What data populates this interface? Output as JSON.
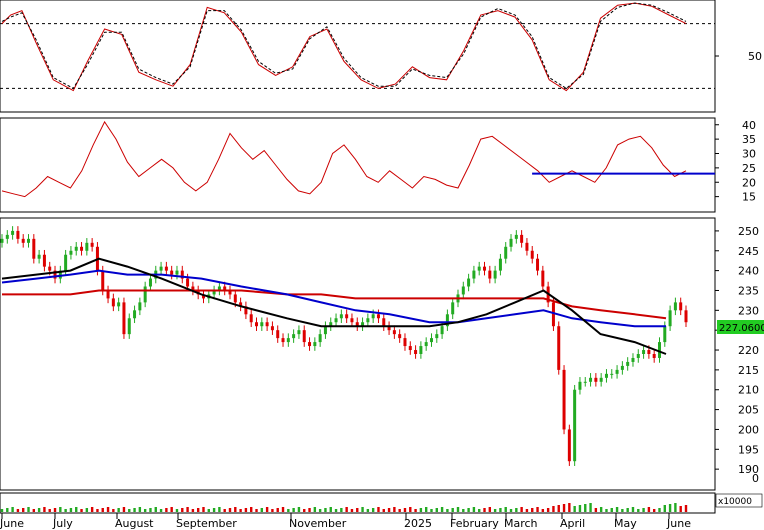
{
  "chart_data": [
    {
      "type": "line",
      "panel": "stochastic",
      "ylim": [
        0,
        100
      ],
      "yticks": [
        50
      ],
      "reference_levels": [
        80,
        20
      ],
      "series": [
        {
          "color": "#cc0000",
          "style": "solid",
          "x": [
            0,
            3,
            7,
            12,
            18,
            25,
            30,
            36,
            42,
            48,
            54,
            60,
            66,
            72,
            78,
            84,
            90,
            96,
            102,
            108,
            114,
            120,
            126,
            132,
            138,
            144,
            150,
            156,
            162,
            168,
            174,
            180,
            186,
            192,
            198,
            204,
            210,
            216,
            222,
            228,
            234,
            240
          ],
          "y": [
            80,
            88,
            92,
            62,
            28,
            18,
            45,
            75,
            70,
            35,
            28,
            22,
            42,
            95,
            90,
            72,
            42,
            32,
            40,
            68,
            75,
            45,
            28,
            20,
            24,
            40,
            30,
            28,
            55,
            88,
            92,
            86,
            65,
            28,
            18,
            35,
            85,
            97,
            99,
            96,
            88,
            80
          ]
        },
        {
          "color": "#000000",
          "style": "dashed",
          "x": [
            0,
            3,
            7,
            12,
            18,
            25,
            30,
            36,
            42,
            48,
            54,
            60,
            66,
            72,
            78,
            84,
            90,
            96,
            102,
            108,
            114,
            120,
            126,
            132,
            138,
            144,
            150,
            156,
            162,
            168,
            174,
            180,
            186,
            192,
            198,
            204,
            210,
            216,
            222,
            228,
            234,
            240
          ],
          "y": [
            82,
            86,
            90,
            65,
            30,
            20,
            42,
            72,
            72,
            38,
            30,
            24,
            40,
            92,
            92,
            74,
            45,
            34,
            38,
            66,
            77,
            48,
            30,
            22,
            22,
            38,
            32,
            30,
            52,
            86,
            94,
            88,
            68,
            30,
            20,
            33,
            82,
            95,
            99,
            97,
            90,
            82
          ]
        }
      ]
    },
    {
      "type": "line",
      "panel": "adx",
      "ylim": [
        10,
        42
      ],
      "yticks": [
        15,
        20,
        25,
        30,
        35,
        40
      ],
      "series": [
        {
          "color": "#cc0000",
          "x": [
            0,
            4,
            8,
            12,
            16,
            20,
            24,
            28,
            32,
            36,
            40,
            44,
            48,
            52,
            56,
            60,
            64,
            68,
            72,
            76,
            80,
            84,
            88,
            92,
            96,
            100,
            104,
            108,
            112,
            116,
            120,
            124,
            128,
            132,
            136,
            140,
            144,
            148,
            152,
            156,
            160,
            164,
            168,
            172,
            176,
            180,
            184,
            188,
            192,
            196,
            200,
            204,
            208,
            212,
            216,
            220,
            224,
            228,
            232,
            236,
            240
          ],
          "y": [
            17,
            16,
            15,
            18,
            22,
            20,
            18,
            24,
            33,
            41,
            35,
            27,
            22,
            25,
            28,
            25,
            20,
            17,
            20,
            28,
            37,
            32,
            28,
            31,
            26,
            21,
            17,
            16,
            20,
            30,
            33,
            28,
            22,
            20,
            24,
            21,
            18,
            22,
            21,
            19,
            18,
            26,
            35,
            36,
            33,
            30,
            27,
            24,
            20,
            22,
            24,
            22,
            20,
            25,
            33,
            35,
            36,
            32,
            26,
            22,
            24
          ]
        },
        {
          "color": "#0000cc",
          "x": [
            186,
            196,
            206,
            216,
            226,
            236,
            240
          ],
          "y": [
            23,
            23,
            23,
            23,
            23,
            23,
            23
          ]
        }
      ]
    },
    {
      "type": "candlestick",
      "panel": "price",
      "ylim": [
        185,
        253
      ],
      "yticks": [
        190,
        195,
        200,
        205,
        210,
        215,
        220,
        225,
        230,
        235,
        240,
        245,
        250
      ],
      "last_price": "227.0600",
      "xlabels": [
        "June",
        "July",
        "August",
        "September",
        "November",
        "2025",
        "February",
        "March",
        "April",
        "May",
        "June"
      ],
      "close": [
        248,
        249,
        250,
        248,
        247,
        248,
        243,
        244,
        241,
        240,
        238,
        240,
        244,
        245,
        246,
        245,
        247,
        246,
        240,
        235,
        233,
        231,
        232,
        224,
        228,
        230,
        232,
        236,
        238,
        240,
        241,
        240,
        239,
        240,
        238,
        236,
        235,
        234,
        233,
        234,
        235,
        236,
        235,
        234,
        232,
        231,
        229,
        227,
        226,
        227,
        226,
        225,
        223,
        222,
        223,
        224,
        225,
        222,
        221,
        222,
        224,
        226,
        227,
        228,
        229,
        228,
        227,
        226,
        227,
        228,
        229,
        228,
        226,
        225,
        224,
        223,
        221,
        220,
        219,
        221,
        222,
        223,
        224,
        226,
        229,
        232,
        234,
        236,
        238,
        240,
        241,
        240,
        238,
        240,
        243,
        246,
        248,
        249,
        247,
        245,
        243,
        240,
        236,
        232,
        226,
        215,
        200,
        192,
        210,
        212,
        212,
        213,
        212,
        213,
        214,
        214,
        215,
        216,
        217,
        218,
        219,
        220,
        219,
        218,
        222,
        226,
        230,
        232,
        230,
        227
      ],
      "ma_short_20": {
        "color": "#000000",
        "x": [
          0,
          12,
          24,
          34,
          44,
          56,
          70,
          84,
          100,
          112,
          124,
          136,
          150,
          160,
          170,
          180,
          190,
          200,
          210,
          222,
          233
        ],
        "y": [
          238,
          239,
          240,
          243,
          241,
          238,
          234,
          231,
          228,
          226,
          226,
          226,
          226,
          227,
          229,
          232,
          235,
          230,
          224,
          222,
          219
        ]
      },
      "ma_mid_50": {
        "color": "#0000cc",
        "x": [
          0,
          12,
          24,
          34,
          44,
          56,
          70,
          84,
          100,
          112,
          124,
          136,
          150,
          160,
          170,
          180,
          190,
          200,
          210,
          222,
          233
        ],
        "y": [
          237,
          238,
          239,
          240,
          239,
          239,
          238,
          236,
          234,
          232,
          230,
          229,
          227,
          227,
          228,
          229,
          230,
          228,
          227,
          226,
          226
        ]
      },
      "ma_long_200": {
        "color": "#cc0000",
        "x": [
          0,
          12,
          24,
          34,
          44,
          56,
          70,
          84,
          100,
          112,
          124,
          136,
          150,
          160,
          170,
          180,
          190,
          200,
          210,
          222,
          233
        ],
        "y": [
          234,
          234,
          234,
          235,
          235,
          235,
          235,
          235,
          234,
          234,
          233,
          233,
          233,
          233,
          233,
          233,
          233,
          231,
          230,
          229,
          228
        ]
      }
    },
    {
      "type": "bar",
      "panel": "volume",
      "unit_label": "x10000",
      "ytick": "0"
    }
  ]
}
